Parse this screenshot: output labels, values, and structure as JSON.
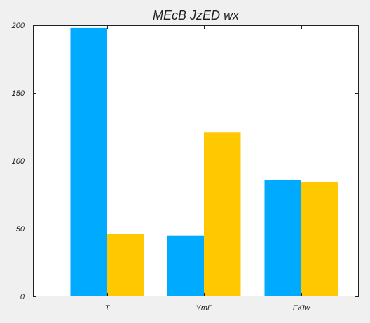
{
  "chart_data": {
    "type": "bar",
    "title": "MEcB JzED wx",
    "xlabel": "",
    "ylabel": "",
    "categories": [
      "T",
      "YmF",
      "FKlw"
    ],
    "series": [
      {
        "values": [
          198,
          45,
          86
        ],
        "color": "#00aaff"
      },
      {
        "values": [
          46,
          121,
          84
        ],
        "color": "#ffc800"
      }
    ],
    "ylim": [
      0,
      200
    ],
    "yticks": [
      "0",
      "50",
      "100",
      "150",
      "200"
    ],
    "grid": false,
    "legend": "none"
  }
}
